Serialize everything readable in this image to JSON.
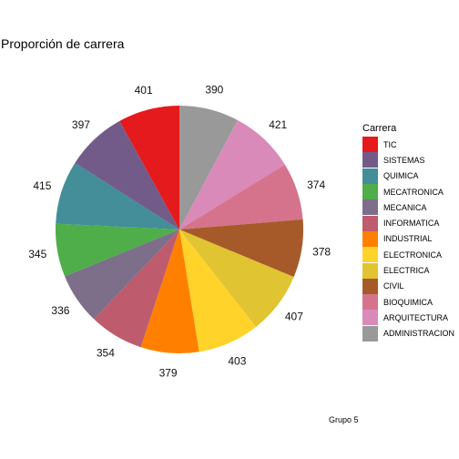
{
  "chart_data": {
    "type": "pie",
    "title": "Proporción de carrera",
    "caption": "Grupo 5",
    "legend": {
      "title": "Carrera",
      "position": "right"
    },
    "categories": [
      "ADMINISTRACION",
      "ARQUITECTURA",
      "BIOQUIMICA",
      "CIVIL",
      "ELECTRICA",
      "ELECTRONICA",
      "INDUSTRIAL",
      "INFORMATICA",
      "MECANICA",
      "MECATRONICA",
      "QUIMICA",
      "SISTEMAS",
      "TIC"
    ],
    "values": [
      390,
      421,
      374,
      378,
      407,
      403,
      379,
      354,
      336,
      345,
      415,
      397,
      401
    ],
    "colors": [
      "#999999",
      "#D98AB8",
      "#D6738C",
      "#A65A2A",
      "#E0C431",
      "#FFD32A",
      "#FF8000",
      "#BE5B6C",
      "#7D6E8A",
      "#4FAD4A",
      "#438E98",
      "#735B89",
      "#E41A1C"
    ],
    "legend_order": [
      "TIC",
      "SISTEMAS",
      "QUIMICA",
      "MECATRONICA",
      "MECANICA",
      "INFORMATICA",
      "INDUSTRIAL",
      "ELECTRONICA",
      "ELECTRICA",
      "CIVIL",
      "BIOQUIMICA",
      "ARQUITECTURA",
      "ADMINISTRACION"
    ]
  }
}
